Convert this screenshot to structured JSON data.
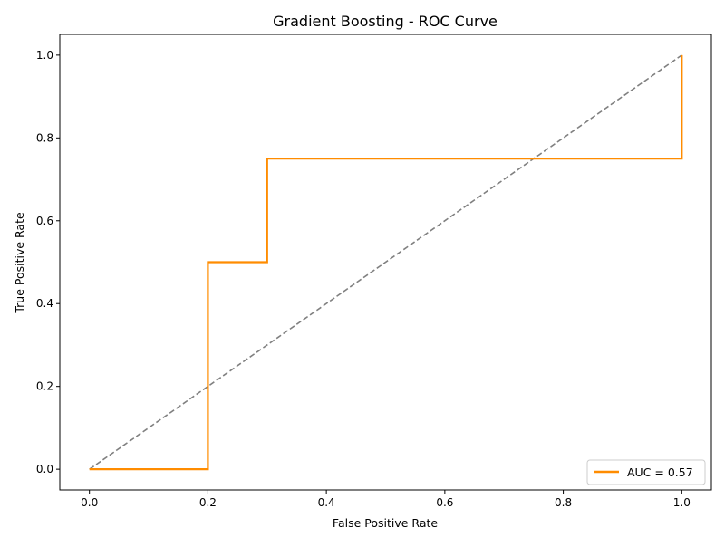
{
  "chart_data": {
    "type": "line",
    "title": "Gradient Boosting - ROC Curve",
    "xlabel": "False Positive Rate",
    "ylabel": "True Positive Rate",
    "xlim": [
      -0.05,
      1.05
    ],
    "ylim": [
      -0.05,
      1.05
    ],
    "x_ticks": [
      "0.0",
      "0.2",
      "0.4",
      "0.6",
      "0.8",
      "1.0"
    ],
    "y_ticks": [
      "0.0",
      "0.2",
      "0.4",
      "0.6",
      "0.8",
      "1.0"
    ],
    "grid": false,
    "legend_position": "lower-right",
    "series": [
      {
        "name": "AUC = 0.57",
        "color": "#ff8c00",
        "style": "solid",
        "x": [
          0.0,
          0.2,
          0.2,
          0.3,
          0.3,
          1.0,
          1.0
        ],
        "y": [
          0.0,
          0.0,
          0.5,
          0.5,
          0.75,
          0.75,
          1.0
        ]
      },
      {
        "color": "#808080",
        "style": "dashed",
        "x": [
          0.0,
          1.0
        ],
        "y": [
          0.0,
          1.0
        ]
      }
    ]
  }
}
